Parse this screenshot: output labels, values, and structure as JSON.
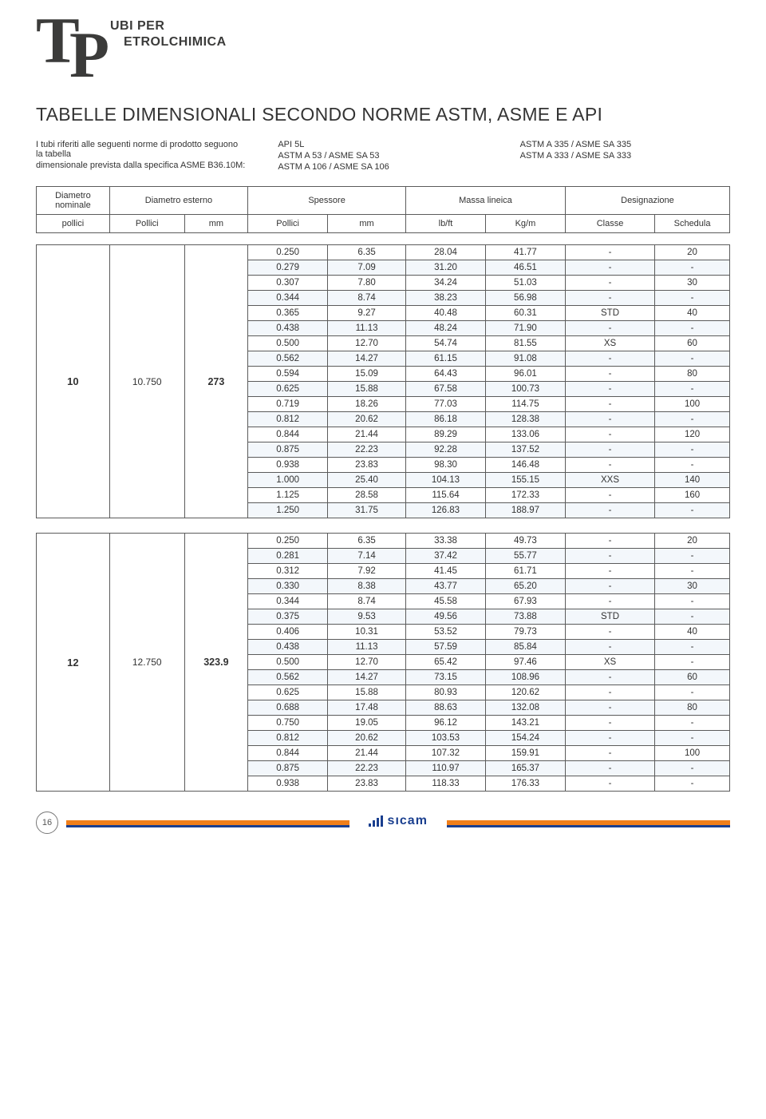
{
  "logo": {
    "line1": "UBI PER",
    "line2": "ETROLCHIMICA"
  },
  "title": "TABELLE DIMENSIONALI SECONDO NORME ASTM, ASME E API",
  "intro": {
    "col1": [
      "I tubi riferiti alle seguenti norme di prodotto seguono la tabella",
      "dimensionale prevista dalla specifica ASME B36.10M:"
    ],
    "col2": [
      "API 5L",
      "ASTM A 53 / ASME SA 53",
      "ASTM A 106 / ASME SA 106"
    ],
    "col3": [
      "ASTM A 335 / ASME SA 335",
      "ASTM A 333 / ASME SA 333"
    ]
  },
  "header": {
    "r1": [
      "Diametro nominale",
      "Diametro esterno",
      "Spessore",
      "Massa lineica",
      "Designazione"
    ],
    "r2": [
      "pollici",
      "Pollici",
      "mm",
      "Pollici",
      "mm",
      "lb/ft",
      "Kg/m",
      "Classe",
      "Schedula"
    ]
  },
  "groups": [
    {
      "nominal": "10",
      "ext_in": "10.750",
      "ext_mm": "273",
      "rows": [
        [
          "0.250",
          "6.35",
          "28.04",
          "41.77",
          "-",
          "20"
        ],
        [
          "0.279",
          "7.09",
          "31.20",
          "46.51",
          "-",
          "-"
        ],
        [
          "0.307",
          "7.80",
          "34.24",
          "51.03",
          "-",
          "30"
        ],
        [
          "0.344",
          "8.74",
          "38.23",
          "56.98",
          "-",
          "-"
        ],
        [
          "0.365",
          "9.27",
          "40.48",
          "60.31",
          "STD",
          "40"
        ],
        [
          "0.438",
          "11.13",
          "48.24",
          "71.90",
          "-",
          "-"
        ],
        [
          "0.500",
          "12.70",
          "54.74",
          "81.55",
          "XS",
          "60"
        ],
        [
          "0.562",
          "14.27",
          "61.15",
          "91.08",
          "-",
          "-"
        ],
        [
          "0.594",
          "15.09",
          "64.43",
          "96.01",
          "-",
          "80"
        ],
        [
          "0.625",
          "15.88",
          "67.58",
          "100.73",
          "-",
          "-"
        ],
        [
          "0.719",
          "18.26",
          "77.03",
          "114.75",
          "-",
          "100"
        ],
        [
          "0.812",
          "20.62",
          "86.18",
          "128.38",
          "-",
          "-"
        ],
        [
          "0.844",
          "21.44",
          "89.29",
          "133.06",
          "-",
          "120"
        ],
        [
          "0.875",
          "22.23",
          "92.28",
          "137.52",
          "-",
          "-"
        ],
        [
          "0.938",
          "23.83",
          "98.30",
          "146.48",
          "-",
          "-"
        ],
        [
          "1.000",
          "25.40",
          "104.13",
          "155.15",
          "XXS",
          "140"
        ],
        [
          "1.125",
          "28.58",
          "115.64",
          "172.33",
          "-",
          "160"
        ],
        [
          "1.250",
          "31.75",
          "126.83",
          "188.97",
          "-",
          "-"
        ]
      ]
    },
    {
      "nominal": "12",
      "ext_in": "12.750",
      "ext_mm": "323.9",
      "rows": [
        [
          "0.250",
          "6.35",
          "33.38",
          "49.73",
          "-",
          "20"
        ],
        [
          "0.281",
          "7.14",
          "37.42",
          "55.77",
          "-",
          "-"
        ],
        [
          "0.312",
          "7.92",
          "41.45",
          "61.71",
          "-",
          "-"
        ],
        [
          "0.330",
          "8.38",
          "43.77",
          "65.20",
          "-",
          "30"
        ],
        [
          "0.344",
          "8.74",
          "45.58",
          "67.93",
          "-",
          "-"
        ],
        [
          "0.375",
          "9.53",
          "49.56",
          "73.88",
          "STD",
          "-"
        ],
        [
          "0.406",
          "10.31",
          "53.52",
          "79.73",
          "-",
          "40"
        ],
        [
          "0.438",
          "11.13",
          "57.59",
          "85.84",
          "-",
          "-"
        ],
        [
          "0.500",
          "12.70",
          "65.42",
          "97.46",
          "XS",
          "-"
        ],
        [
          "0.562",
          "14.27",
          "73.15",
          "108.96",
          "-",
          "60"
        ],
        [
          "0.625",
          "15.88",
          "80.93",
          "120.62",
          "-",
          "-"
        ],
        [
          "0.688",
          "17.48",
          "88.63",
          "132.08",
          "-",
          "80"
        ],
        [
          "0.750",
          "19.05",
          "96.12",
          "143.21",
          "-",
          "-"
        ],
        [
          "0.812",
          "20.62",
          "103.53",
          "154.24",
          "-",
          "-"
        ],
        [
          "0.844",
          "21.44",
          "107.32",
          "159.91",
          "-",
          "100"
        ],
        [
          "0.875",
          "22.23",
          "110.97",
          "165.37",
          "-",
          "-"
        ],
        [
          "0.938",
          "23.83",
          "118.33",
          "176.33",
          "-",
          "-"
        ]
      ]
    }
  ],
  "page_number": "16",
  "footer_brand": "sıcam",
  "colors": {
    "text": "#333333",
    "border": "#5b5b5b",
    "row_alt": "#f3f7fb",
    "brand_blue": "#1a3f8f",
    "brand_orange": "#f07f1a",
    "logo_dark": "#3b3b3a"
  }
}
